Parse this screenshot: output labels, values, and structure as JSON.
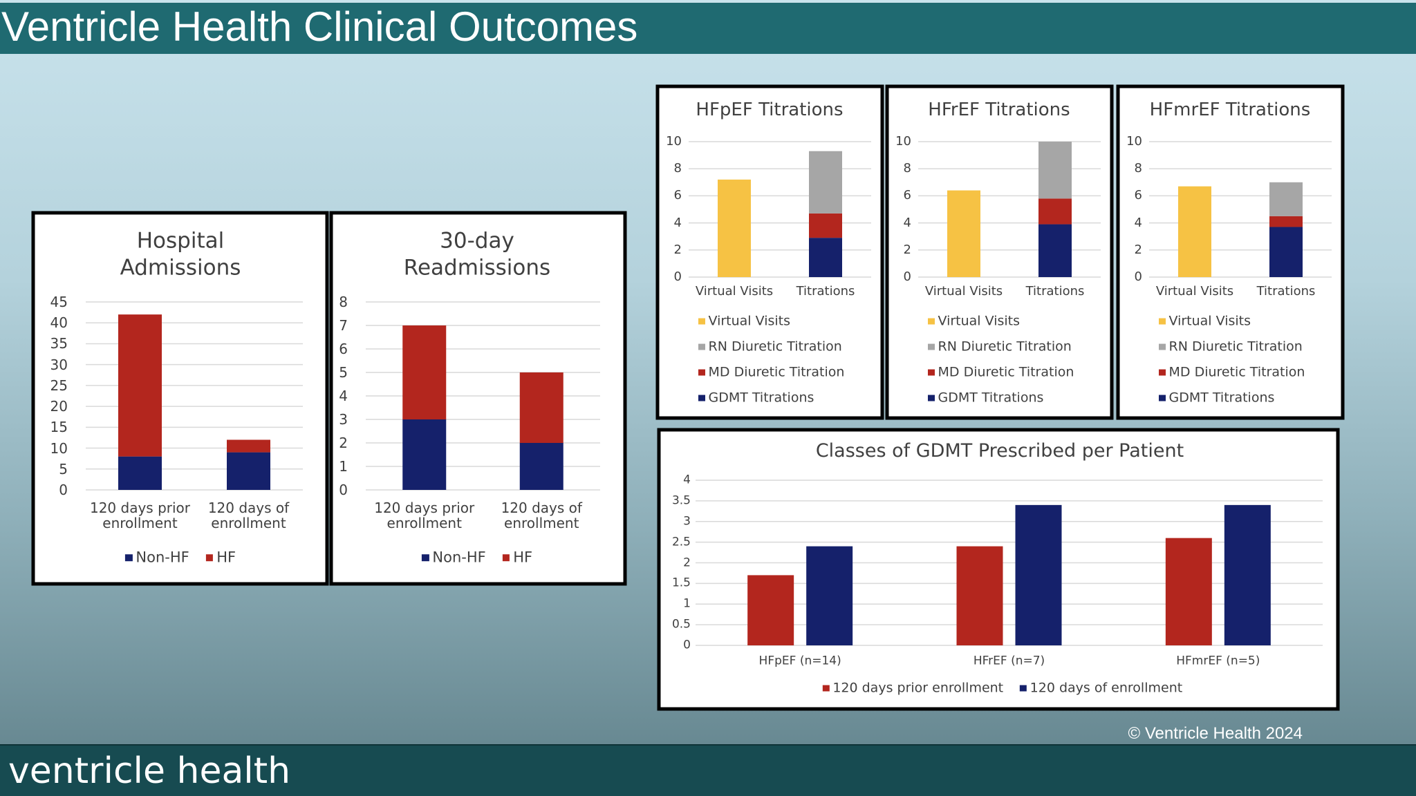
{
  "header": {
    "title": "Ventricle Health Clinical Outcomes"
  },
  "footer": {
    "brand": "ventricle health",
    "copyright": "© Ventricle Health 2024"
  },
  "chart_data": [
    {
      "type": "bar",
      "stacked": true,
      "title": "Hospital Admissions",
      "categories": [
        "120 days prior enrollment",
        "120 days of enrollment"
      ],
      "series": [
        {
          "name": "Non-HF",
          "color": "#15216b",
          "values": [
            8,
            9
          ]
        },
        {
          "name": "HF",
          "color": "#b3261e",
          "values": [
            34,
            3
          ]
        }
      ],
      "ylim": [
        0,
        45
      ],
      "yticks": [
        0,
        5,
        10,
        15,
        20,
        25,
        30,
        35,
        40,
        45
      ],
      "grid": true,
      "legend": "bottom"
    },
    {
      "type": "bar",
      "stacked": true,
      "title": "30-day Readmissions",
      "categories": [
        "120 days prior enrollment",
        "120 days of enrollment"
      ],
      "series": [
        {
          "name": "Non-HF",
          "color": "#15216b",
          "values": [
            3,
            2
          ]
        },
        {
          "name": "HF",
          "color": "#b3261e",
          "values": [
            4,
            3
          ]
        }
      ],
      "ylim": [
        0,
        8
      ],
      "yticks": [
        0,
        1,
        2,
        3,
        4,
        5,
        6,
        7,
        8
      ],
      "grid": true,
      "legend": "bottom"
    },
    {
      "type": "bar",
      "stacked": true,
      "title": "HFpEF Titrations",
      "categories": [
        "Virtual Visits",
        "Titrations"
      ],
      "series": [
        {
          "name": "GDMT Titrations",
          "color": "#15216b",
          "values": [
            null,
            2.9
          ]
        },
        {
          "name": "MD Diuretic Titration",
          "color": "#b3261e",
          "values": [
            null,
            1.8
          ]
        },
        {
          "name": "RN Diuretic Titration",
          "color": "#a6a6a6",
          "values": [
            null,
            4.6
          ]
        },
        {
          "name": "Virtual Visits",
          "color": "#f6c244",
          "values": [
            7.2,
            null
          ]
        }
      ],
      "ylim": [
        0,
        10
      ],
      "yticks": [
        0,
        2,
        4,
        6,
        8,
        10
      ],
      "grid": true,
      "legend": "bottom"
    },
    {
      "type": "bar",
      "stacked": true,
      "title": "HFrEF Titrations",
      "categories": [
        "Virtual Visits",
        "Titrations"
      ],
      "series": [
        {
          "name": "GDMT Titrations",
          "color": "#15216b",
          "values": [
            null,
            3.9
          ]
        },
        {
          "name": "MD Diuretic Titration",
          "color": "#b3261e",
          "values": [
            null,
            1.9
          ]
        },
        {
          "name": "RN Diuretic Titration",
          "color": "#a6a6a6",
          "values": [
            null,
            4.2
          ]
        },
        {
          "name": "Virtual Visits",
          "color": "#f6c244",
          "values": [
            6.4,
            null
          ]
        }
      ],
      "ylim": [
        0,
        10
      ],
      "yticks": [
        0,
        2,
        4,
        6,
        8,
        10
      ],
      "grid": true,
      "legend": "bottom"
    },
    {
      "type": "bar",
      "stacked": true,
      "title": "HFmrEF Titrations",
      "categories": [
        "Virtual Visits",
        "Titrations"
      ],
      "series": [
        {
          "name": "GDMT Titrations",
          "color": "#15216b",
          "values": [
            null,
            3.7
          ]
        },
        {
          "name": "MD Diuretic Titration",
          "color": "#b3261e",
          "values": [
            null,
            0.8
          ]
        },
        {
          "name": "RN Diuretic Titration",
          "color": "#a6a6a6",
          "values": [
            null,
            2.5
          ]
        },
        {
          "name": "Virtual Visits",
          "color": "#f6c244",
          "values": [
            6.7,
            null
          ]
        }
      ],
      "ylim": [
        0,
        10
      ],
      "yticks": [
        0,
        2,
        4,
        6,
        8,
        10
      ],
      "grid": true,
      "legend": "bottom"
    },
    {
      "type": "bar",
      "stacked": false,
      "title": "Classes of GDMT Prescribed per Patient",
      "categories": [
        "HFpEF (n=14)",
        "HFrEF (n=7)",
        "HFmrEF (n=5)"
      ],
      "series": [
        {
          "name": "120 days prior enrollment",
          "color": "#b3261e",
          "values": [
            1.7,
            2.4,
            2.6
          ]
        },
        {
          "name": "120 days of enrollment",
          "color": "#15216b",
          "values": [
            2.4,
            3.4,
            3.4
          ]
        }
      ],
      "ylim": [
        0,
        4
      ],
      "yticks": [
        0,
        0.5,
        1,
        1.5,
        2,
        2.5,
        3,
        3.5,
        4
      ],
      "grid": true,
      "legend": "bottom"
    }
  ]
}
